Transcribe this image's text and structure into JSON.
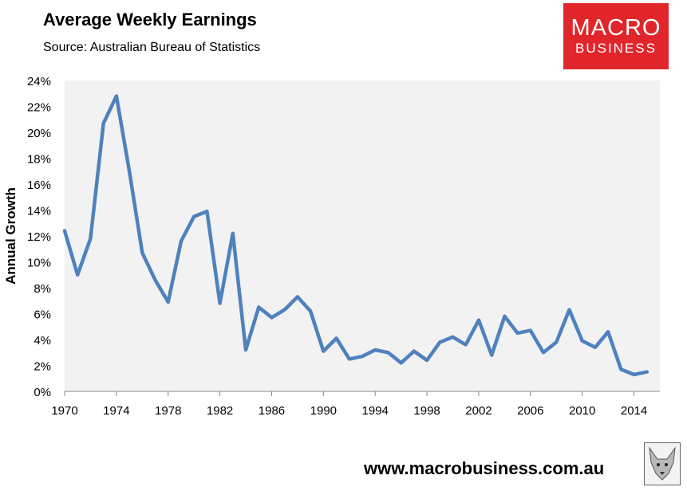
{
  "header": {
    "title": "Average Weekly Earnings",
    "source": "Source: Australian Bureau of Statistics"
  },
  "logo": {
    "line1": "MACRO",
    "line2": "BUSINESS",
    "color": "#e0262a"
  },
  "footer": {
    "website": "www.macrobusiness.com.au",
    "badge_icon": "fox-icon"
  },
  "chart_data": {
    "type": "line",
    "title": "Average Weekly Earnings",
    "xlabel": "",
    "ylabel": "Annual Growth",
    "xlim": [
      1970,
      2016
    ],
    "ylim": [
      0,
      24
    ],
    "x_ticks": [
      "1970",
      "1974",
      "1978",
      "1982",
      "1986",
      "1990",
      "1994",
      "1998",
      "2002",
      "2006",
      "2010",
      "2014"
    ],
    "y_ticks": [
      "0%",
      "2%",
      "4%",
      "6%",
      "8%",
      "10%",
      "12%",
      "14%",
      "16%",
      "18%",
      "20%",
      "22%",
      "24%"
    ],
    "grid": false,
    "legend": "none",
    "plot_background": "#f2f2f2",
    "series": [
      {
        "color": "#4f81bd",
        "x": [
          1970,
          1971,
          1972,
          1973,
          1974,
          1975,
          1976,
          1977,
          1978,
          1979,
          1980,
          1981,
          1982,
          1983,
          1984,
          1985,
          1986,
          1987,
          1988,
          1989,
          1990,
          1991,
          1992,
          1993,
          1994,
          1995,
          1996,
          1997,
          1998,
          1999,
          2000,
          2001,
          2002,
          2003,
          2004,
          2005,
          2006,
          2007,
          2008,
          2009,
          2010,
          2011,
          2012,
          2013,
          2014,
          2015
        ],
        "values": [
          12.4,
          9.0,
          11.8,
          20.7,
          22.8,
          17.0,
          10.7,
          8.6,
          6.9,
          11.6,
          13.5,
          13.9,
          6.8,
          12.2,
          3.2,
          6.5,
          5.7,
          6.3,
          7.3,
          6.2,
          3.1,
          4.1,
          2.5,
          2.7,
          3.2,
          3.0,
          2.2,
          3.1,
          2.4,
          3.8,
          4.2,
          3.6,
          5.5,
          2.8,
          5.8,
          4.5,
          4.7,
          3.0,
          3.8,
          6.3,
          3.9,
          3.4,
          4.6,
          1.7,
          1.3,
          1.5
        ]
      }
    ]
  }
}
